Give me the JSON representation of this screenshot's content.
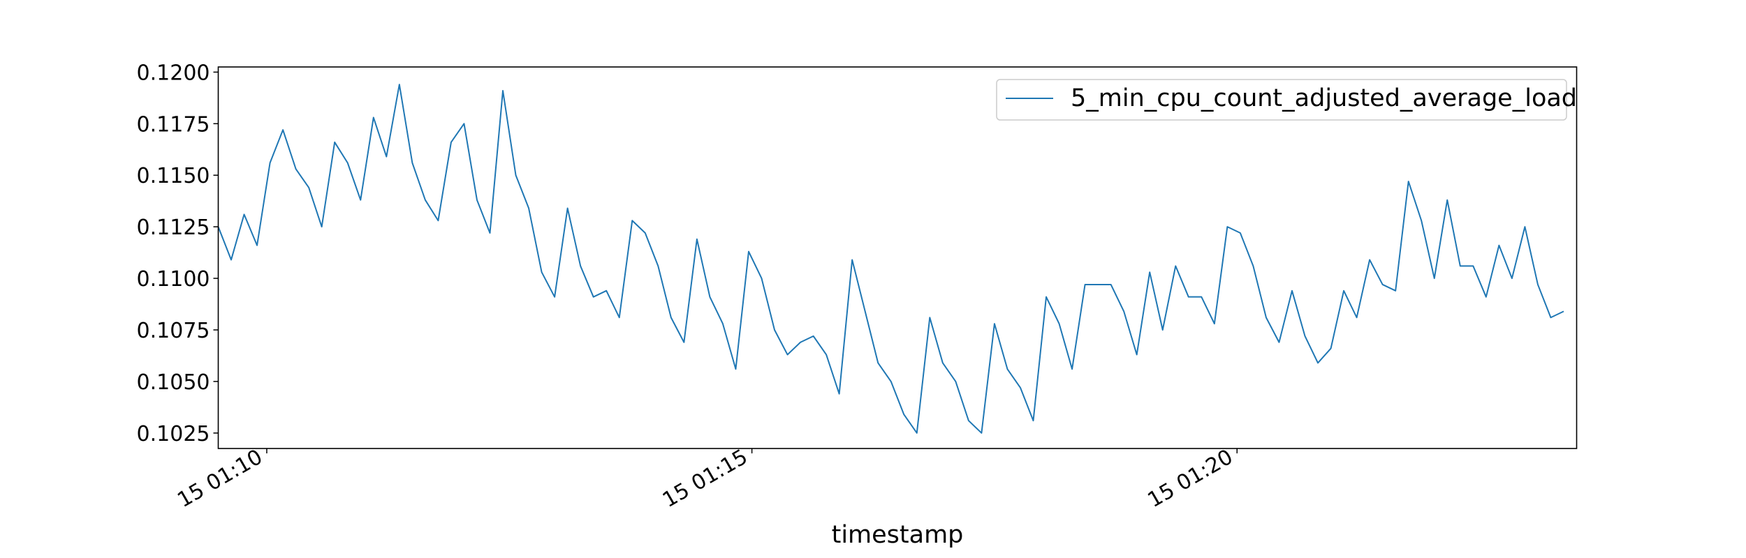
{
  "chart_data": {
    "type": "line",
    "title": "",
    "xlabel": "timestamp",
    "ylabel": "",
    "grid": false,
    "legend_placement": "top-right",
    "x_axis": {
      "kind": "time",
      "range": [
        "2024-01-15T01:09:30",
        "2024-01-15T01:23:30"
      ],
      "ticks": [
        {
          "value": "2024-01-15T01:10:00",
          "label": "15 01:10"
        },
        {
          "value": "2024-01-15T01:15:00",
          "label": "15 01:15"
        },
        {
          "value": "2024-01-15T01:20:00",
          "label": "15 01:20"
        }
      ]
    },
    "y_axis": {
      "range": [
        0.10175,
        0.12025
      ],
      "ticks": [
        "0.1025",
        "0.1050",
        "0.1075",
        "0.1100",
        "0.1125",
        "0.1150",
        "0.1175",
        "0.1200"
      ]
    },
    "series": [
      {
        "name": "5_min_cpu_count_adjusted_average_load",
        "color": "#1f77b4",
        "start": "2024-01-15T01:09:30",
        "step_seconds": 8,
        "values": [
          0.1125,
          0.1109,
          0.1131,
          0.1116,
          0.1156,
          0.1172,
          0.1153,
          0.1144,
          0.1125,
          0.1166,
          0.1156,
          0.1138,
          0.1178,
          0.1159,
          0.1194,
          0.1156,
          0.1138,
          0.1128,
          0.1166,
          0.1175,
          0.1138,
          0.1122,
          0.1191,
          0.115,
          0.1134,
          0.1103,
          0.1091,
          0.1134,
          0.1106,
          0.1091,
          0.1094,
          0.1081,
          0.1128,
          0.1122,
          0.1106,
          0.1081,
          0.1069,
          0.1119,
          0.1091,
          0.1078,
          0.1056,
          0.1113,
          0.11,
          0.1075,
          0.1063,
          0.1069,
          0.1072,
          0.1063,
          0.1044,
          0.1109,
          0.1084,
          0.1059,
          0.105,
          0.1034,
          0.1025,
          0.1081,
          0.1059,
          0.105,
          0.1031,
          0.1025,
          0.1078,
          0.1056,
          0.1047,
          0.1031,
          0.1091,
          0.1078,
          0.1056,
          0.1097,
          0.1097,
          0.1097,
          0.1084,
          0.1063,
          0.1103,
          0.1075,
          0.1106,
          0.1091,
          0.1091,
          0.1078,
          0.1125,
          0.1122,
          0.1106,
          0.1081,
          0.1069,
          0.1094,
          0.1072,
          0.1059,
          0.1066,
          0.1094,
          0.1081,
          0.1109,
          0.1097,
          0.1094,
          0.1147,
          0.1128,
          0.11,
          0.1138,
          0.1106,
          0.1106,
          0.1091,
          0.1116,
          0.11,
          0.1125,
          0.1097,
          0.1081,
          0.1084
        ]
      }
    ]
  }
}
